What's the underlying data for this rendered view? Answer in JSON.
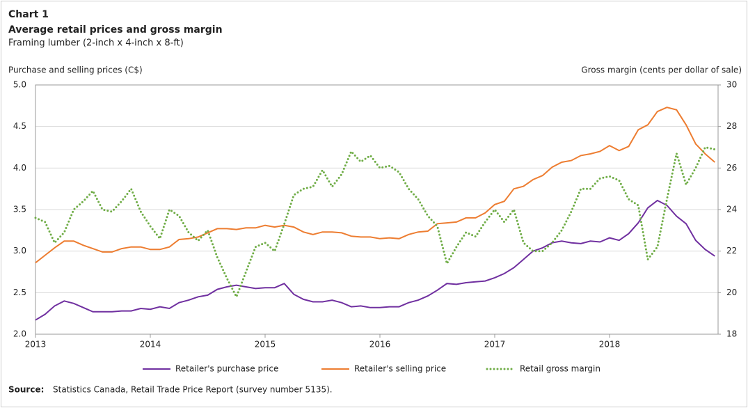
{
  "chart_data": {
    "type": "line",
    "label": "Chart 1",
    "title": "Average retail prices and gross margin",
    "subtitle": "Framing lumber (2-inch x 4-inch x 8-ft)",
    "ylabel": "Purchase and selling prices (C$)",
    "y2label": "Gross margin (cents per dollar of sale)",
    "source_label": "Source:",
    "source_text": "Statistics Canada, Retail Trade Price Report (survey number 5135).",
    "categories": [
      "2013",
      null,
      null,
      null,
      null,
      null,
      null,
      null,
      null,
      null,
      null,
      null,
      "2014",
      null,
      null,
      null,
      null,
      null,
      null,
      null,
      null,
      null,
      null,
      null,
      "2015",
      null,
      null,
      null,
      null,
      null,
      null,
      null,
      null,
      null,
      null,
      null,
      "2016",
      null,
      null,
      null,
      null,
      null,
      null,
      null,
      null,
      null,
      null,
      null,
      "2017",
      null,
      null,
      null,
      null,
      null,
      null,
      null,
      null,
      null,
      null,
      null,
      "2018",
      null,
      null,
      null,
      null,
      null,
      null,
      null,
      null,
      null,
      null,
      null
    ],
    "ylim": [
      2,
      5
    ],
    "yticks": [
      {
        "value": 2,
        "label": "2.0"
      },
      {
        "value": 2.5,
        "label": "2.5"
      },
      {
        "value": 3,
        "label": "3.0"
      },
      {
        "value": 3.5,
        "label": "3.5"
      },
      {
        "value": 4,
        "label": "4.0"
      },
      {
        "value": 4.5,
        "label": "4.5"
      },
      {
        "value": 5,
        "label": "5.0"
      }
    ],
    "y2lim": [
      18,
      30
    ],
    "y2ticks": [
      18,
      20,
      22,
      24,
      26,
      28,
      30
    ],
    "grid": true,
    "series": [
      {
        "name": "Retailer's purchase price",
        "color": "#7030a0",
        "style": "solid",
        "values": [
          2.17,
          2.24,
          2.34,
          2.4,
          2.37,
          2.32,
          2.27,
          2.27,
          2.27,
          2.28,
          2.28,
          2.31,
          2.3,
          2.33,
          2.31,
          2.38,
          2.41,
          2.45,
          2.47,
          2.54,
          2.57,
          2.59,
          2.57,
          2.55,
          2.56,
          2.56,
          2.61,
          2.48,
          2.42,
          2.39,
          2.39,
          2.41,
          2.38,
          2.33,
          2.34,
          2.32,
          2.32,
          2.33,
          2.33,
          2.38,
          2.41,
          2.46,
          2.53,
          2.61,
          2.6,
          2.62,
          2.63,
          2.64,
          2.68,
          2.73,
          2.8,
          2.9,
          3.0,
          3.04,
          3.1,
          3.12,
          3.1,
          3.09,
          3.12,
          3.11,
          3.16,
          3.13,
          3.21,
          3.34,
          3.52,
          3.61,
          3.55,
          3.42,
          3.33,
          3.13,
          3.02,
          2.94
        ]
      },
      {
        "name": "Retailer's selling price",
        "color": "#ed7d31",
        "style": "solid",
        "values": [
          2.86,
          2.95,
          3.04,
          3.12,
          3.12,
          3.07,
          3.03,
          2.99,
          2.99,
          3.03,
          3.05,
          3.05,
          3.02,
          3.02,
          3.05,
          3.14,
          3.15,
          3.17,
          3.22,
          3.27,
          3.27,
          3.26,
          3.28,
          3.28,
          3.31,
          3.29,
          3.31,
          3.29,
          3.23,
          3.2,
          3.23,
          3.23,
          3.22,
          3.18,
          3.17,
          3.17,
          3.15,
          3.16,
          3.15,
          3.2,
          3.23,
          3.24,
          3.33,
          3.34,
          3.35,
          3.4,
          3.4,
          3.46,
          3.56,
          3.6,
          3.75,
          3.78,
          3.86,
          3.91,
          4.01,
          4.07,
          4.09,
          4.15,
          4.17,
          4.2,
          4.27,
          4.21,
          4.26,
          4.46,
          4.52,
          4.68,
          4.73,
          4.7,
          4.52,
          4.29,
          4.17,
          4.07
        ]
      },
      {
        "name": "Retail gross margin",
        "color": "#70ad47",
        "style": "dotted",
        "axis": "y2",
        "values": [
          23.6,
          23.4,
          22.4,
          22.9,
          24.0,
          24.4,
          24.9,
          24.0,
          23.9,
          24.4,
          25.0,
          23.9,
          23.2,
          22.6,
          24.0,
          23.7,
          22.9,
          22.5,
          23.0,
          21.7,
          20.7,
          19.8,
          21.0,
          22.2,
          22.4,
          22.0,
          23.3,
          24.7,
          25.0,
          25.1,
          25.9,
          25.1,
          25.7,
          26.8,
          26.3,
          26.6,
          26.0,
          26.1,
          25.8,
          25.0,
          24.5,
          23.7,
          23.2,
          21.4,
          22.2,
          22.9,
          22.7,
          23.4,
          24.0,
          23.4,
          24.0,
          22.4,
          22.0,
          22.0,
          22.4,
          23.0,
          23.9,
          25.0,
          25.0,
          25.5,
          25.6,
          25.4,
          24.5,
          24.2,
          21.6,
          22.2,
          24.5,
          26.7,
          25.2,
          26.0,
          27.0,
          26.9
        ]
      }
    ]
  }
}
